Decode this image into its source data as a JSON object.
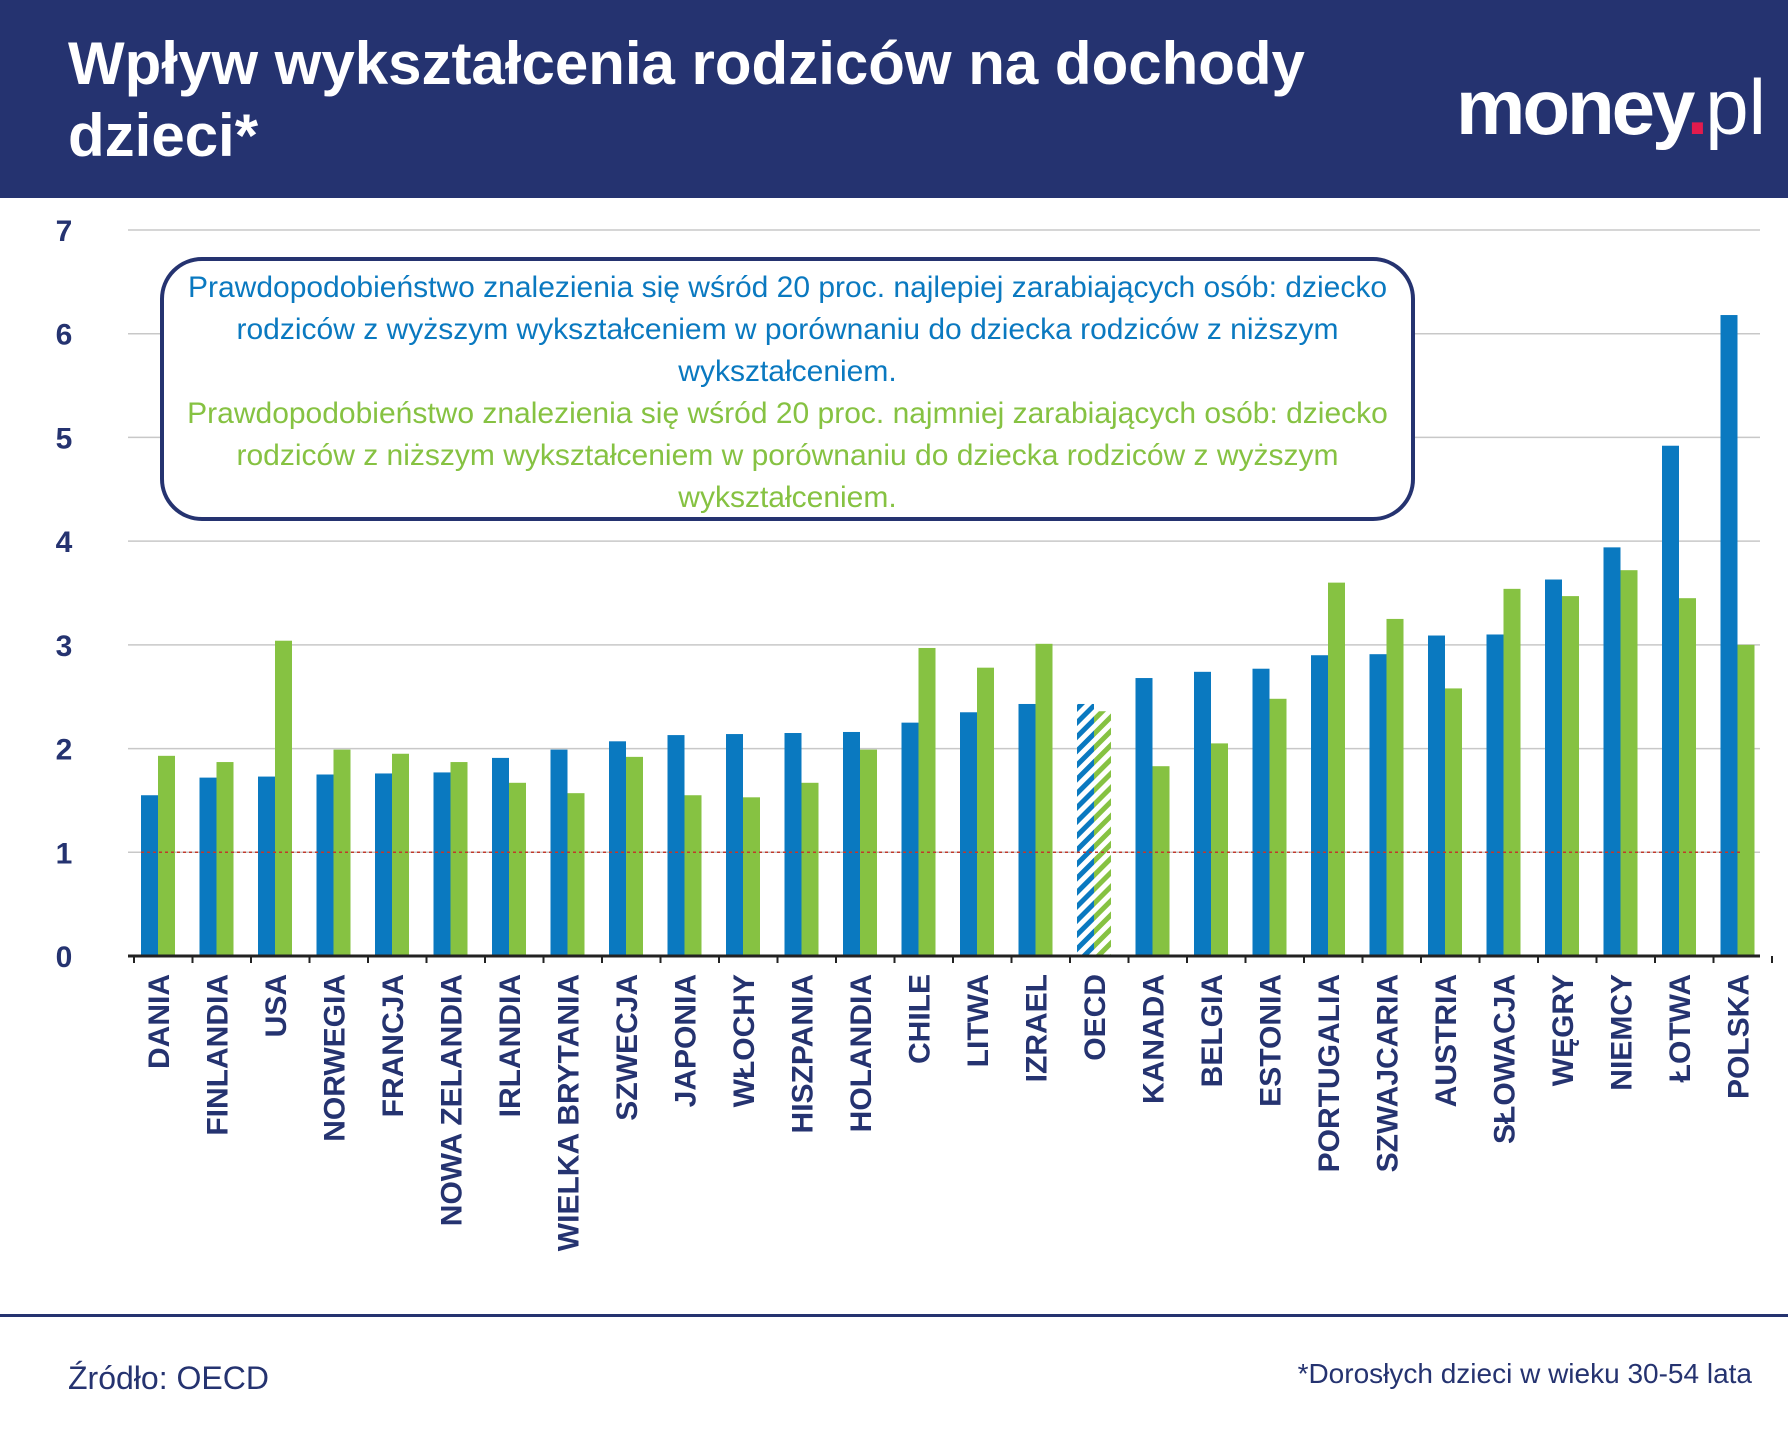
{
  "header": {
    "title": "Wpływ wykształcenia rodziców na dochody dzieci*",
    "logo": {
      "main": "money",
      "dot": ".",
      "suffix": "pl"
    }
  },
  "legend": {
    "blue_text": "Prawdopodobieństwo znalezienia się wśród 20 proc. najlepiej zarabiających osób: dziecko rodziców z wyższym wykształceniem w porównaniu do dziecka rodziców z niższym wykształceniem.",
    "green_text": "Prawdopodobieństwo znalezienia się wśród 20 proc. najmniej zarabiających osób: dziecko rodziców z niższym wykształceniem w porównaniu do dziecka rodziców z wyższym wykształceniem."
  },
  "footer": {
    "source": "Źródło: OECD",
    "note": "*Dorosłych dzieci w wieku 30-54 lata"
  },
  "colors": {
    "header_bg": "#253370",
    "blue": "#0a79c0",
    "green": "#86c242",
    "reference_line": "#c0392b",
    "axis_text": "#253370"
  },
  "chart_data": {
    "type": "bar",
    "categories": [
      "DANIA",
      "FINLANDIA",
      "USA",
      "NORWEGIA",
      "FRANCJA",
      "NOWA ZELANDIA",
      "IRLANDIA",
      "WIELKA BRYTANIA",
      "SZWECJA",
      "JAPONIA",
      "WŁOCHY",
      "HISZPANIA",
      "HOLANDIA",
      "CHILE",
      "LITWA",
      "IZRAEL",
      "OECD",
      "KANADA",
      "BELGIA",
      "ESTONIA",
      "PORTUGALIA",
      "SZWAJCARIA",
      "AUSTRIA",
      "SŁOWACJA",
      "WĘGRY",
      "NIEMCY",
      "ŁOTWA",
      "POLSKA"
    ],
    "series": [
      {
        "color": "#0a79c0",
        "values": [
          1.55,
          1.72,
          1.73,
          1.75,
          1.76,
          1.77,
          1.91,
          1.99,
          2.07,
          2.13,
          2.14,
          2.15,
          2.16,
          2.25,
          2.35,
          2.43,
          2.43,
          2.68,
          2.74,
          2.77,
          2.9,
          2.91,
          3.09,
          3.1,
          3.63,
          3.94,
          4.92,
          6.18
        ]
      },
      {
        "color": "#86c242",
        "values": [
          1.93,
          1.87,
          3.04,
          1.99,
          1.95,
          1.87,
          1.67,
          1.57,
          1.92,
          1.55,
          1.53,
          1.67,
          1.99,
          2.97,
          2.78,
          3.01,
          2.36,
          1.83,
          2.05,
          2.48,
          3.6,
          3.25,
          2.58,
          3.54,
          3.47,
          3.72,
          3.45,
          3.0
        ]
      }
    ],
    "highlight_category": "OECD",
    "reference_line": 1,
    "ylim": [
      0,
      7
    ],
    "yticks": [
      0,
      1,
      2,
      3,
      4,
      5,
      6,
      7
    ],
    "grid": true
  }
}
